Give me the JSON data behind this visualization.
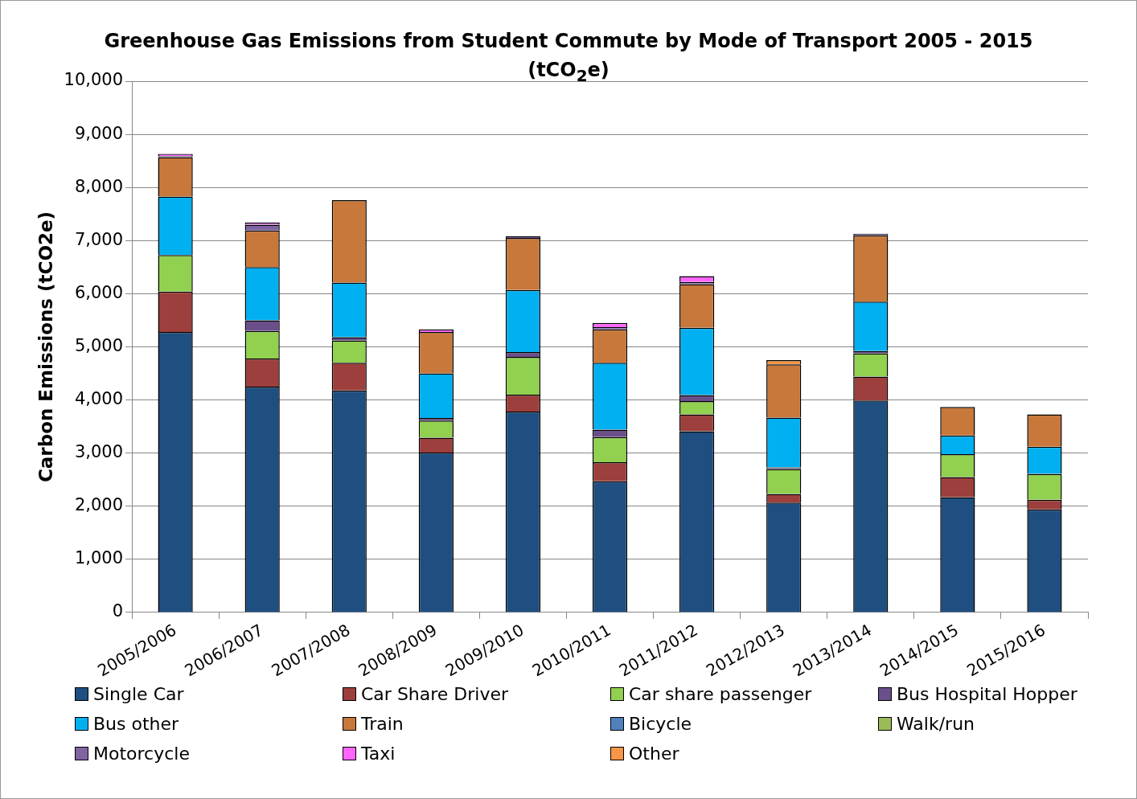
{
  "chart_data": {
    "type": "bar",
    "title": "Greenhouse Gas Emissions from Student Commute by Mode of Transport 2005 - 2015\n(tCO$_{2}$e)",
    "ylabel": "Carbon Emissions (tCO2e)",
    "categories": [
      "2005/2006",
      "2006/2007",
      "2007/2008",
      "2008/2009",
      "2009/2010",
      "2010/2011",
      "2011/2012",
      "2012/2013",
      "2013/2014",
      "2014/2015",
      "2015/2016"
    ],
    "stacked": true,
    "series": [
      {
        "name": "Single Car",
        "color": "#1f4e80",
        "values": [
          5280,
          4250,
          4180,
          3010,
          3780,
          2470,
          3410,
          2070,
          3990,
          2170,
          1940
        ]
      },
      {
        "name": "Car Share Driver",
        "color": "#9c3f3d",
        "values": [
          760,
          530,
          520,
          280,
          320,
          360,
          320,
          160,
          450,
          380,
          180
        ]
      },
      {
        "name": "Car share passenger",
        "color": "#92d050",
        "values": [
          690,
          520,
          420,
          320,
          710,
          470,
          250,
          470,
          440,
          430,
          490
        ]
      },
      {
        "name": "Bus Hospital Hopper",
        "color": "#6a4f8a",
        "values": [
          null,
          200,
          60,
          50,
          90,
          140,
          110,
          30,
          40,
          null,
          null
        ]
      },
      {
        "name": "Bus other",
        "color": "#00b0f0",
        "values": [
          1100,
          1000,
          1030,
          840,
          1170,
          1260,
          1270,
          940,
          930,
          350,
          510
        ]
      },
      {
        "name": "Train",
        "color": "#c8783a",
        "values": [
          740,
          690,
          1550,
          780,
          980,
          630,
          820,
          1000,
          1250,
          540,
          610
        ]
      },
      {
        "name": "Bicycle",
        "color": "#4f81bd",
        "values": [
          null,
          null,
          null,
          null,
          null,
          null,
          null,
          null,
          null,
          null,
          null
        ]
      },
      {
        "name": "Walk/run",
        "color": "#9bbb59",
        "values": [
          null,
          null,
          null,
          null,
          null,
          null,
          null,
          null,
          null,
          null,
          null
        ]
      },
      {
        "name": "Motorcycle",
        "color": "#8064a2",
        "values": [
          20,
          110,
          null,
          null,
          30,
          40,
          40,
          null,
          30,
          null,
          null
        ]
      },
      {
        "name": "Taxi",
        "color": "#ff66ff",
        "values": [
          40,
          40,
          null,
          50,
          null,
          80,
          110,
          null,
          null,
          null,
          null
        ]
      },
      {
        "name": "Other",
        "color": "#f79646",
        "values": [
          null,
          null,
          null,
          null,
          null,
          null,
          null,
          80,
          null,
          null,
          null
        ]
      }
    ],
    "ylim": [
      0,
      10000
    ],
    "yticks": [
      {
        "value": 0,
        "label": "0"
      },
      {
        "value": 1000,
        "label": "1,000"
      },
      {
        "value": 2000,
        "label": "2,000"
      },
      {
        "value": 3000,
        "label": "3,000"
      },
      {
        "value": 4000,
        "label": "4,000"
      },
      {
        "value": 5000,
        "label": "5,000"
      },
      {
        "value": 6000,
        "label": "6,000"
      },
      {
        "value": 7000,
        "label": "7,000"
      },
      {
        "value": 8000,
        "label": "8,000"
      },
      {
        "value": 9000,
        "label": "9,000"
      },
      {
        "value": 10000,
        "label": "10,000"
      }
    ],
    "grid": "y",
    "legend": "bottom"
  }
}
